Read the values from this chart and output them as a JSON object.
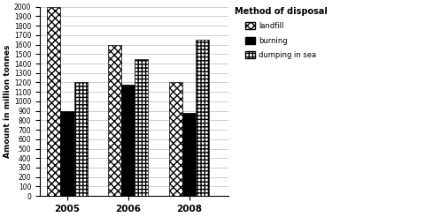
{
  "years": [
    "2005",
    "2006",
    "2008"
  ],
  "landfill": [
    2000,
    1600,
    1200
  ],
  "burning": [
    900,
    1175,
    880
  ],
  "dumping_in_sea": [
    1200,
    1450,
    1650
  ],
  "ylabel": "Amount in million tonnes",
  "legend_title": "Method of disposal",
  "legend_labels": [
    "landfill",
    "burning",
    "dumping in sea"
  ],
  "ylim": [
    0,
    2000
  ],
  "yticks": [
    0,
    100,
    200,
    300,
    400,
    500,
    600,
    700,
    800,
    900,
    1000,
    1100,
    1200,
    1300,
    1400,
    1500,
    1600,
    1700,
    1800,
    1900,
    2000
  ],
  "bar_width": 0.22,
  "background_color": "#ffffff",
  "grid_color": "#bbbbbb",
  "font_color": "#000000",
  "landfill_hatch": "xxxx",
  "burning_hatch": "",
  "dumping_hatch": "++++"
}
